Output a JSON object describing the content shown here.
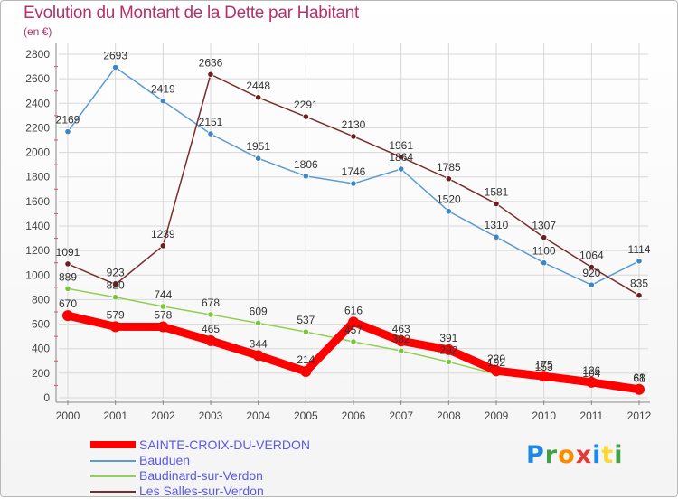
{
  "header": {
    "title": "Evolution du Montant de la Dette par Habitant",
    "subtitle": "(en €)"
  },
  "logo": {
    "text": "Proxiti",
    "colors": [
      "#1e88e5",
      "#43a047",
      "#fb8c00",
      "#e53935",
      "#1e88e5",
      "#fdd835",
      "#43a047"
    ]
  },
  "chart_data": {
    "type": "line",
    "title": "Evolution du Montant de la Dette par Habitant",
    "subtitle": "(en €)",
    "xlabel": "",
    "ylabel": "",
    "x": [
      "2000",
      "2001",
      "2002",
      "2003",
      "2004",
      "2005",
      "2006",
      "2007",
      "2008",
      "2009",
      "2010",
      "2011",
      "2012"
    ],
    "ylim": [
      0,
      2800
    ],
    "yticks": [
      0,
      200,
      400,
      600,
      800,
      1000,
      1200,
      1400,
      1600,
      1800,
      2000,
      2200,
      2400,
      2600,
      2800
    ],
    "grid": true,
    "legend_position": "bottom-left",
    "series": [
      {
        "name": "SAINTE-CROIX-DU-VERDON",
        "color": "#ff0000",
        "values": [
          670,
          579,
          578,
          465,
          344,
          214,
          616,
          463,
          391,
          220,
          175,
          126,
          68
        ]
      },
      {
        "name": "Bauduen",
        "color": "#5b9bd5",
        "values": [
          2169,
          2693,
          2419,
          2151,
          1951,
          1806,
          1746,
          1864,
          1520,
          1310,
          1100,
          920,
          1114
        ]
      },
      {
        "name": "Baudinard-sur-Verdon",
        "color": "#92d050",
        "values": [
          889,
          820,
          744,
          678,
          609,
          537,
          457,
          382,
          292,
          192,
          153,
          104,
          61
        ]
      },
      {
        "name": "Les Salles-sur-Verdon",
        "color": "#7b2c2c",
        "values": [
          1091,
          923,
          1239,
          2636,
          2448,
          2291,
          2130,
          1961,
          1785,
          1581,
          1307,
          1064,
          835
        ]
      }
    ]
  }
}
